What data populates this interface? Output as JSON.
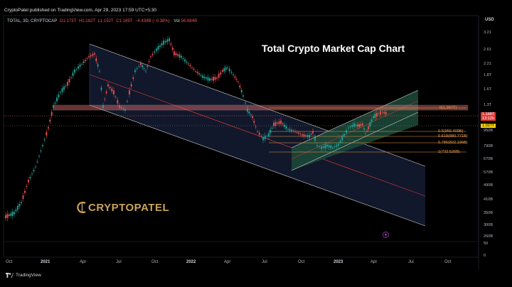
{
  "publisher": {
    "text": "CryptoPatel published on TradingView.com, Apr 29, 2023 17:59 UTC+5:30"
  },
  "legend": {
    "symbol": "TOTAL, 3D, CRYPTOCAP",
    "open": "O1.173T",
    "high": "H1.182T",
    "low": "L1.152T",
    "close": "C1.169T",
    "change": "−4.438B (−0.38%)",
    "vol_label": "Vol",
    "vol_value": "56.684B"
  },
  "title": "Total Crypto Market Cap Chart",
  "logo": {
    "text": "CRYPTOPATEL",
    "icon": "cryptopatel-coin-icon"
  },
  "price_axis": {
    "currency": "USD",
    "ticks": [
      "3.21",
      "2.61",
      "2.21",
      "1.8T",
      "1.6T",
      "1.3T",
      "1.1T",
      "950B",
      "790B",
      "670B",
      "570B",
      "490B",
      "410B",
      "350B",
      "300B",
      "260B",
      "50",
      "0"
    ],
    "current_price": "1.168T",
    "current_sub": "13:12h",
    "marker_price": "1.027T",
    "accent_red": "#e53935",
    "accent_yellow": "#f5d000"
  },
  "time_axis": {
    "labels": [
      {
        "text": "Oct",
        "bold": false
      },
      {
        "text": "2021",
        "bold": true
      },
      {
        "text": "Apr",
        "bold": false
      },
      {
        "text": "Jul",
        "bold": false
      },
      {
        "text": "Oct",
        "bold": false
      },
      {
        "text": "2022",
        "bold": true
      },
      {
        "text": "Apr",
        "bold": false
      },
      {
        "text": "Jul",
        "bold": false
      },
      {
        "text": "Oct",
        "bold": false
      },
      {
        "text": "2023",
        "bold": true
      },
      {
        "text": "Apr",
        "bold": false
      },
      {
        "text": "Jul",
        "bold": false
      },
      {
        "text": "Oct",
        "bold": false
      }
    ]
  },
  "fib_levels": [
    {
      "label": "0(1.267T)"
    },
    {
      "label": "0.5(956.409B)"
    },
    {
      "label": "0.618(880.771B)"
    },
    {
      "label": "0.786(822.196B)"
    },
    {
      "label": "1(732.526B)"
    }
  ],
  "footer": {
    "brand": "TradingView"
  },
  "colors": {
    "background": "#000000",
    "up_candle": "#26a69a",
    "down_candle": "#ef5350",
    "fib": "#f0a04b",
    "channel_fill": "#1a2340",
    "green_channel": "#1f4a3a",
    "resistance_zone": "#e57373"
  }
}
